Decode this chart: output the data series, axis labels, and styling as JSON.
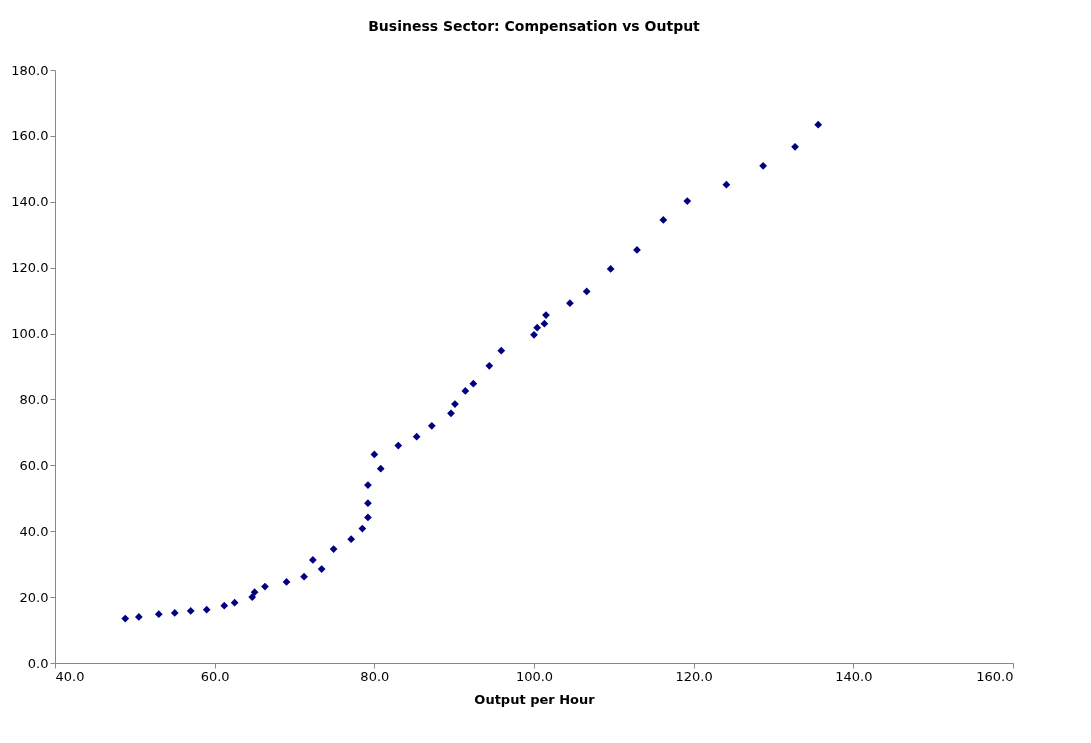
{
  "chart_data": {
    "type": "scatter",
    "title": "Business Sector: Compensation vs Output",
    "xlabel": "Output per Hour",
    "x": [
      48.8,
      50.5,
      53.0,
      55.0,
      57.0,
      59.0,
      61.2,
      62.5,
      64.7,
      65.0,
      66.3,
      69.0,
      71.2,
      72.3,
      73.4,
      74.9,
      77.1,
      78.5,
      79.2,
      79.2,
      79.2,
      80.0,
      80.8,
      83.0,
      85.3,
      87.2,
      89.6,
      90.1,
      91.4,
      92.4,
      94.4,
      95.9,
      100.0,
      100.4,
      101.3,
      101.5,
      104.5,
      106.6,
      109.6,
      112.9,
      116.2,
      119.2,
      124.1,
      128.7,
      132.7,
      135.6
    ],
    "series": [
      {
        "color": "#000080",
        "values": [
          13.5,
          14.0,
          14.8,
          15.2,
          15.8,
          16.2,
          17.4,
          18.3,
          20.0,
          21.5,
          23.2,
          24.6,
          26.2,
          31.3,
          28.5,
          34.6,
          37.6,
          40.8,
          44.2,
          48.5,
          54.0,
          63.3,
          59.0,
          66.0,
          68.7,
          72.0,
          75.8,
          78.6,
          82.6,
          84.8,
          90.2,
          94.8,
          99.6,
          101.8,
          103.0,
          105.6,
          109.2,
          112.8,
          119.6,
          125.4,
          134.5,
          140.2,
          145.2,
          150.9,
          156.7,
          163.4
        ]
      }
    ],
    "xlim": [
      40,
      160
    ],
    "ylim": [
      0,
      180
    ],
    "xticks": [
      {
        "value": 40,
        "label": "40.0"
      },
      {
        "value": 60,
        "label": "60.0"
      },
      {
        "value": 80,
        "label": "80.0"
      },
      {
        "value": 100,
        "label": "100.0"
      },
      {
        "value": 120,
        "label": "120.0"
      },
      {
        "value": 140,
        "label": "140.0"
      },
      {
        "value": 160,
        "label": "160.0"
      }
    ],
    "yticks": [
      {
        "value": 0,
        "label": "0.0"
      },
      {
        "value": 20,
        "label": "20.0"
      },
      {
        "value": 40,
        "label": "40.0"
      },
      {
        "value": 60,
        "label": "60.0"
      },
      {
        "value": 80,
        "label": "80.0"
      },
      {
        "value": 100,
        "label": "100.0"
      },
      {
        "value": 120,
        "label": "120.0"
      },
      {
        "value": 140,
        "label": "140.0"
      },
      {
        "value": 160,
        "label": "160.0"
      },
      {
        "value": 180,
        "label": "180.0"
      }
    ],
    "grid": false,
    "legend": false,
    "marker": "diamond"
  }
}
